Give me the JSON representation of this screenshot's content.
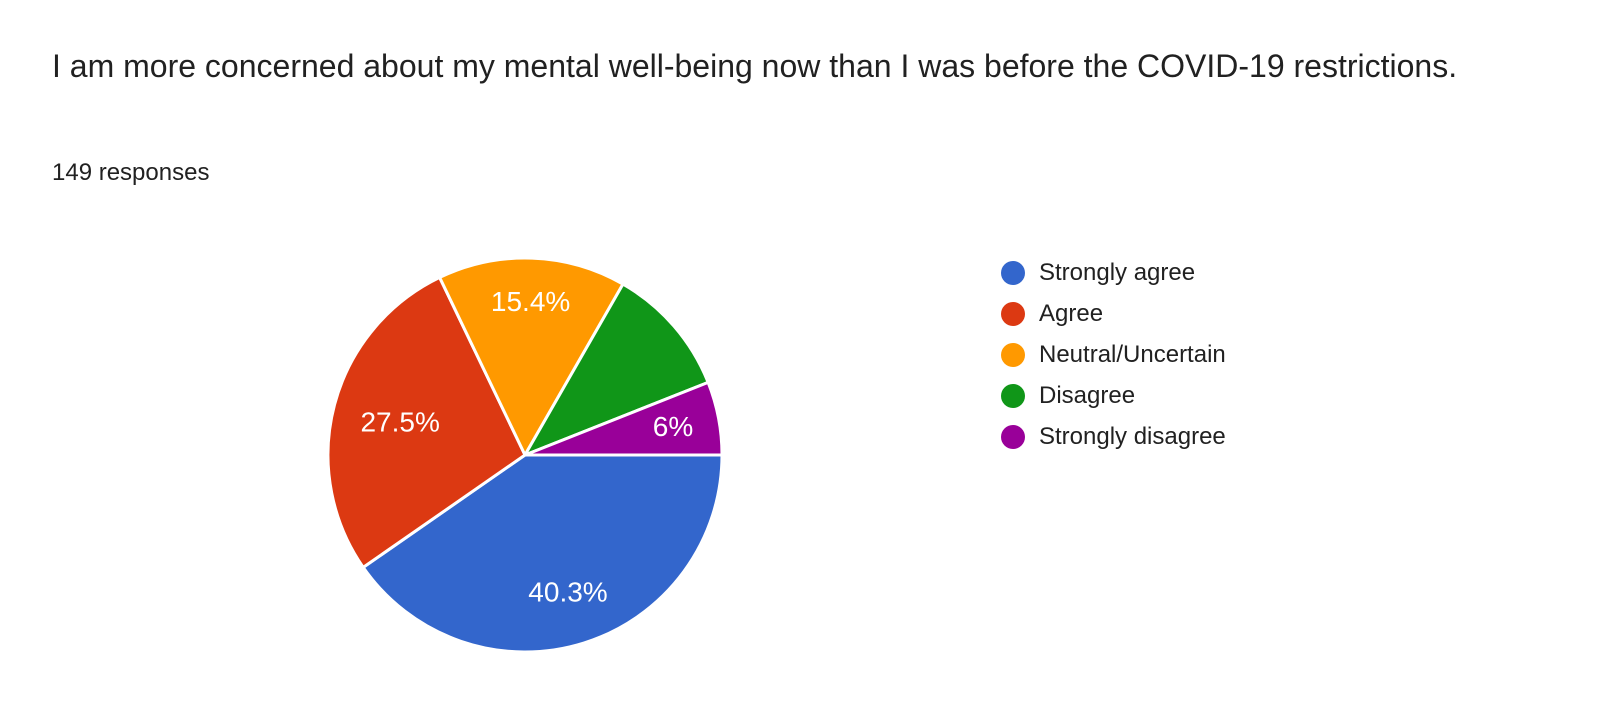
{
  "header": {
    "title": "I am more concerned about my mental well-being now than I was before the COVID-19 restrictions.",
    "responses_count": "149 responses"
  },
  "chart_data": {
    "type": "pie",
    "title": "I am more concerned about my mental well-being now than I was before the COVID-19 restrictions.",
    "subtitle": "149 responses",
    "categories": [
      "Strongly agree",
      "Agree",
      "Neutral/Uncertain",
      "Disagree",
      "Strongly disagree"
    ],
    "values": [
      40.3,
      27.5,
      15.4,
      10.7,
      6.0
    ],
    "slice_labels": [
      "40.3%",
      "27.5%",
      "15.4%",
      "",
      "6%"
    ],
    "colors": [
      "#3366cc",
      "#dc3912",
      "#ff9900",
      "#109618",
      "#990099"
    ],
    "start_angle_deg": 0,
    "direction": "clockwise",
    "legend_position": "right",
    "slice_gap_color": "#ffffff",
    "label_color": "#ffffff",
    "label_radius_fraction": [
      0.73,
      0.655,
      0.78,
      0.72,
      0.765
    ]
  },
  "legend": {
    "items": [
      {
        "label": "Strongly agree",
        "color": "#3366cc"
      },
      {
        "label": "Agree",
        "color": "#dc3912"
      },
      {
        "label": "Neutral/Uncertain",
        "color": "#ff9900"
      },
      {
        "label": "Disagree",
        "color": "#109618"
      },
      {
        "label": "Strongly disagree",
        "color": "#990099"
      }
    ]
  }
}
